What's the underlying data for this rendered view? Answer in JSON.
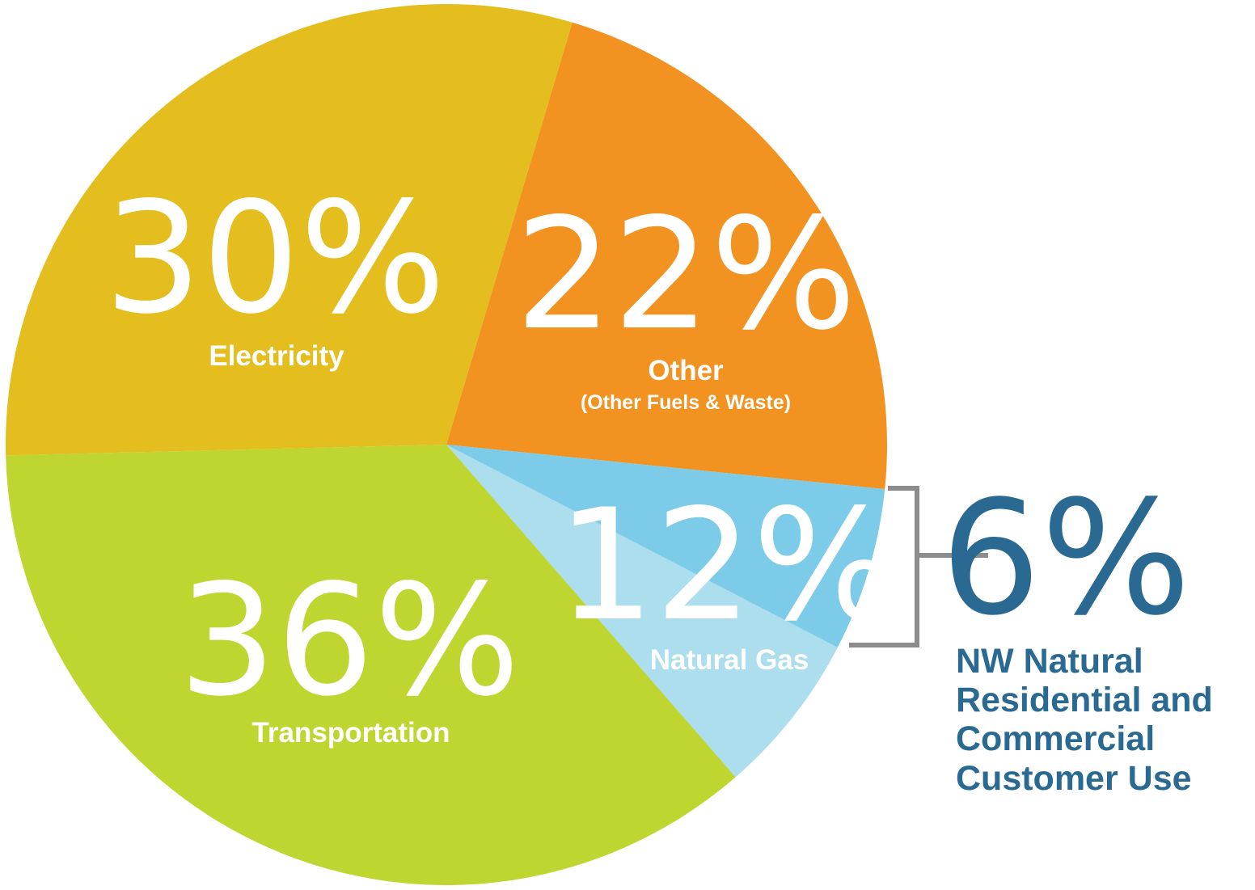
{
  "chart_data": {
    "type": "pie",
    "slices": [
      {
        "label": "Electricity",
        "percent_label": "30%",
        "value": 30,
        "color": "#e4bd1f"
      },
      {
        "label": "Other",
        "sublabel": "(Other Fuels & Waste)",
        "percent_label": "22%",
        "value": 22,
        "color": "#f29220"
      },
      {
        "label": "Natural Gas",
        "percent_label": "12%",
        "value": 12,
        "color": "#7ccbe8",
        "sub_slice": {
          "value": 6,
          "color": "#acdeed"
        }
      },
      {
        "label": "Transportation",
        "percent_label": "36%",
        "value": 36,
        "color": "#bfd631"
      }
    ],
    "callout": {
      "percent_label": "6%",
      "value": 6,
      "lines": [
        "NW Natural",
        "Residential and",
        "Commercial",
        "Customer Use"
      ],
      "color": "#2a6a92",
      "bracket_color": "#8c8c8c"
    }
  }
}
